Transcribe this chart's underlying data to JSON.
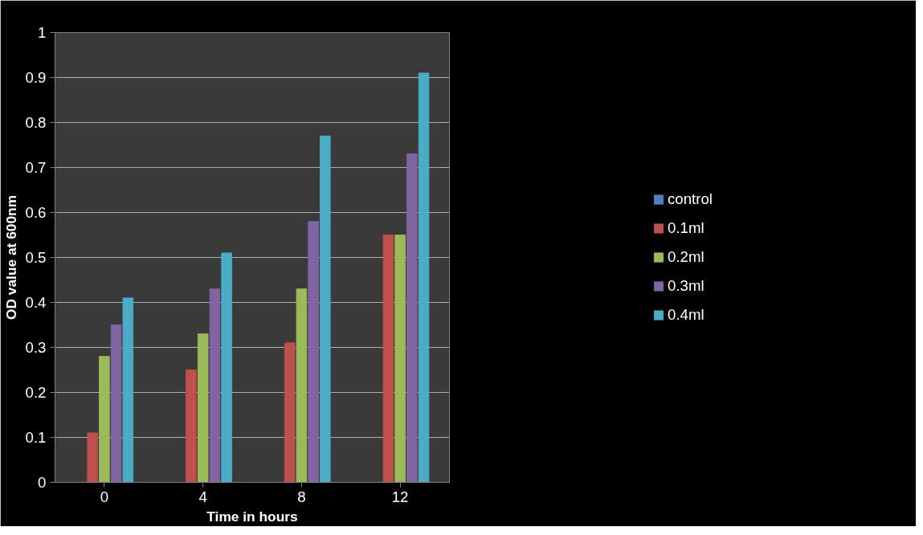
{
  "chart_data": {
    "type": "bar",
    "xlabel": "Time in hours",
    "ylabel": "OD value at 600nm",
    "categories": [
      "0",
      "4",
      "8",
      "12"
    ],
    "series": [
      {
        "name": "control",
        "color": "#4f81bd",
        "values": [
          0,
          0,
          0,
          0
        ]
      },
      {
        "name": "0.1ml",
        "color": "#c0504d",
        "values": [
          0.11,
          0.25,
          0.31,
          0.55
        ]
      },
      {
        "name": "0.2ml",
        "color": "#9bbb59",
        "values": [
          0.28,
          0.33,
          0.43,
          0.55
        ]
      },
      {
        "name": "0.3ml",
        "color": "#8064a2",
        "values": [
          0.35,
          0.43,
          0.58,
          0.73
        ]
      },
      {
        "name": "0.4ml",
        "color": "#4bacc6",
        "values": [
          0.41,
          0.51,
          0.77,
          0.91
        ]
      }
    ],
    "ylim": [
      0,
      1
    ],
    "yticks": [
      0,
      0.1,
      0.2,
      0.3,
      0.4,
      0.5,
      0.6,
      0.7,
      0.8,
      0.9,
      1
    ],
    "grid": "y",
    "legend": "right"
  }
}
